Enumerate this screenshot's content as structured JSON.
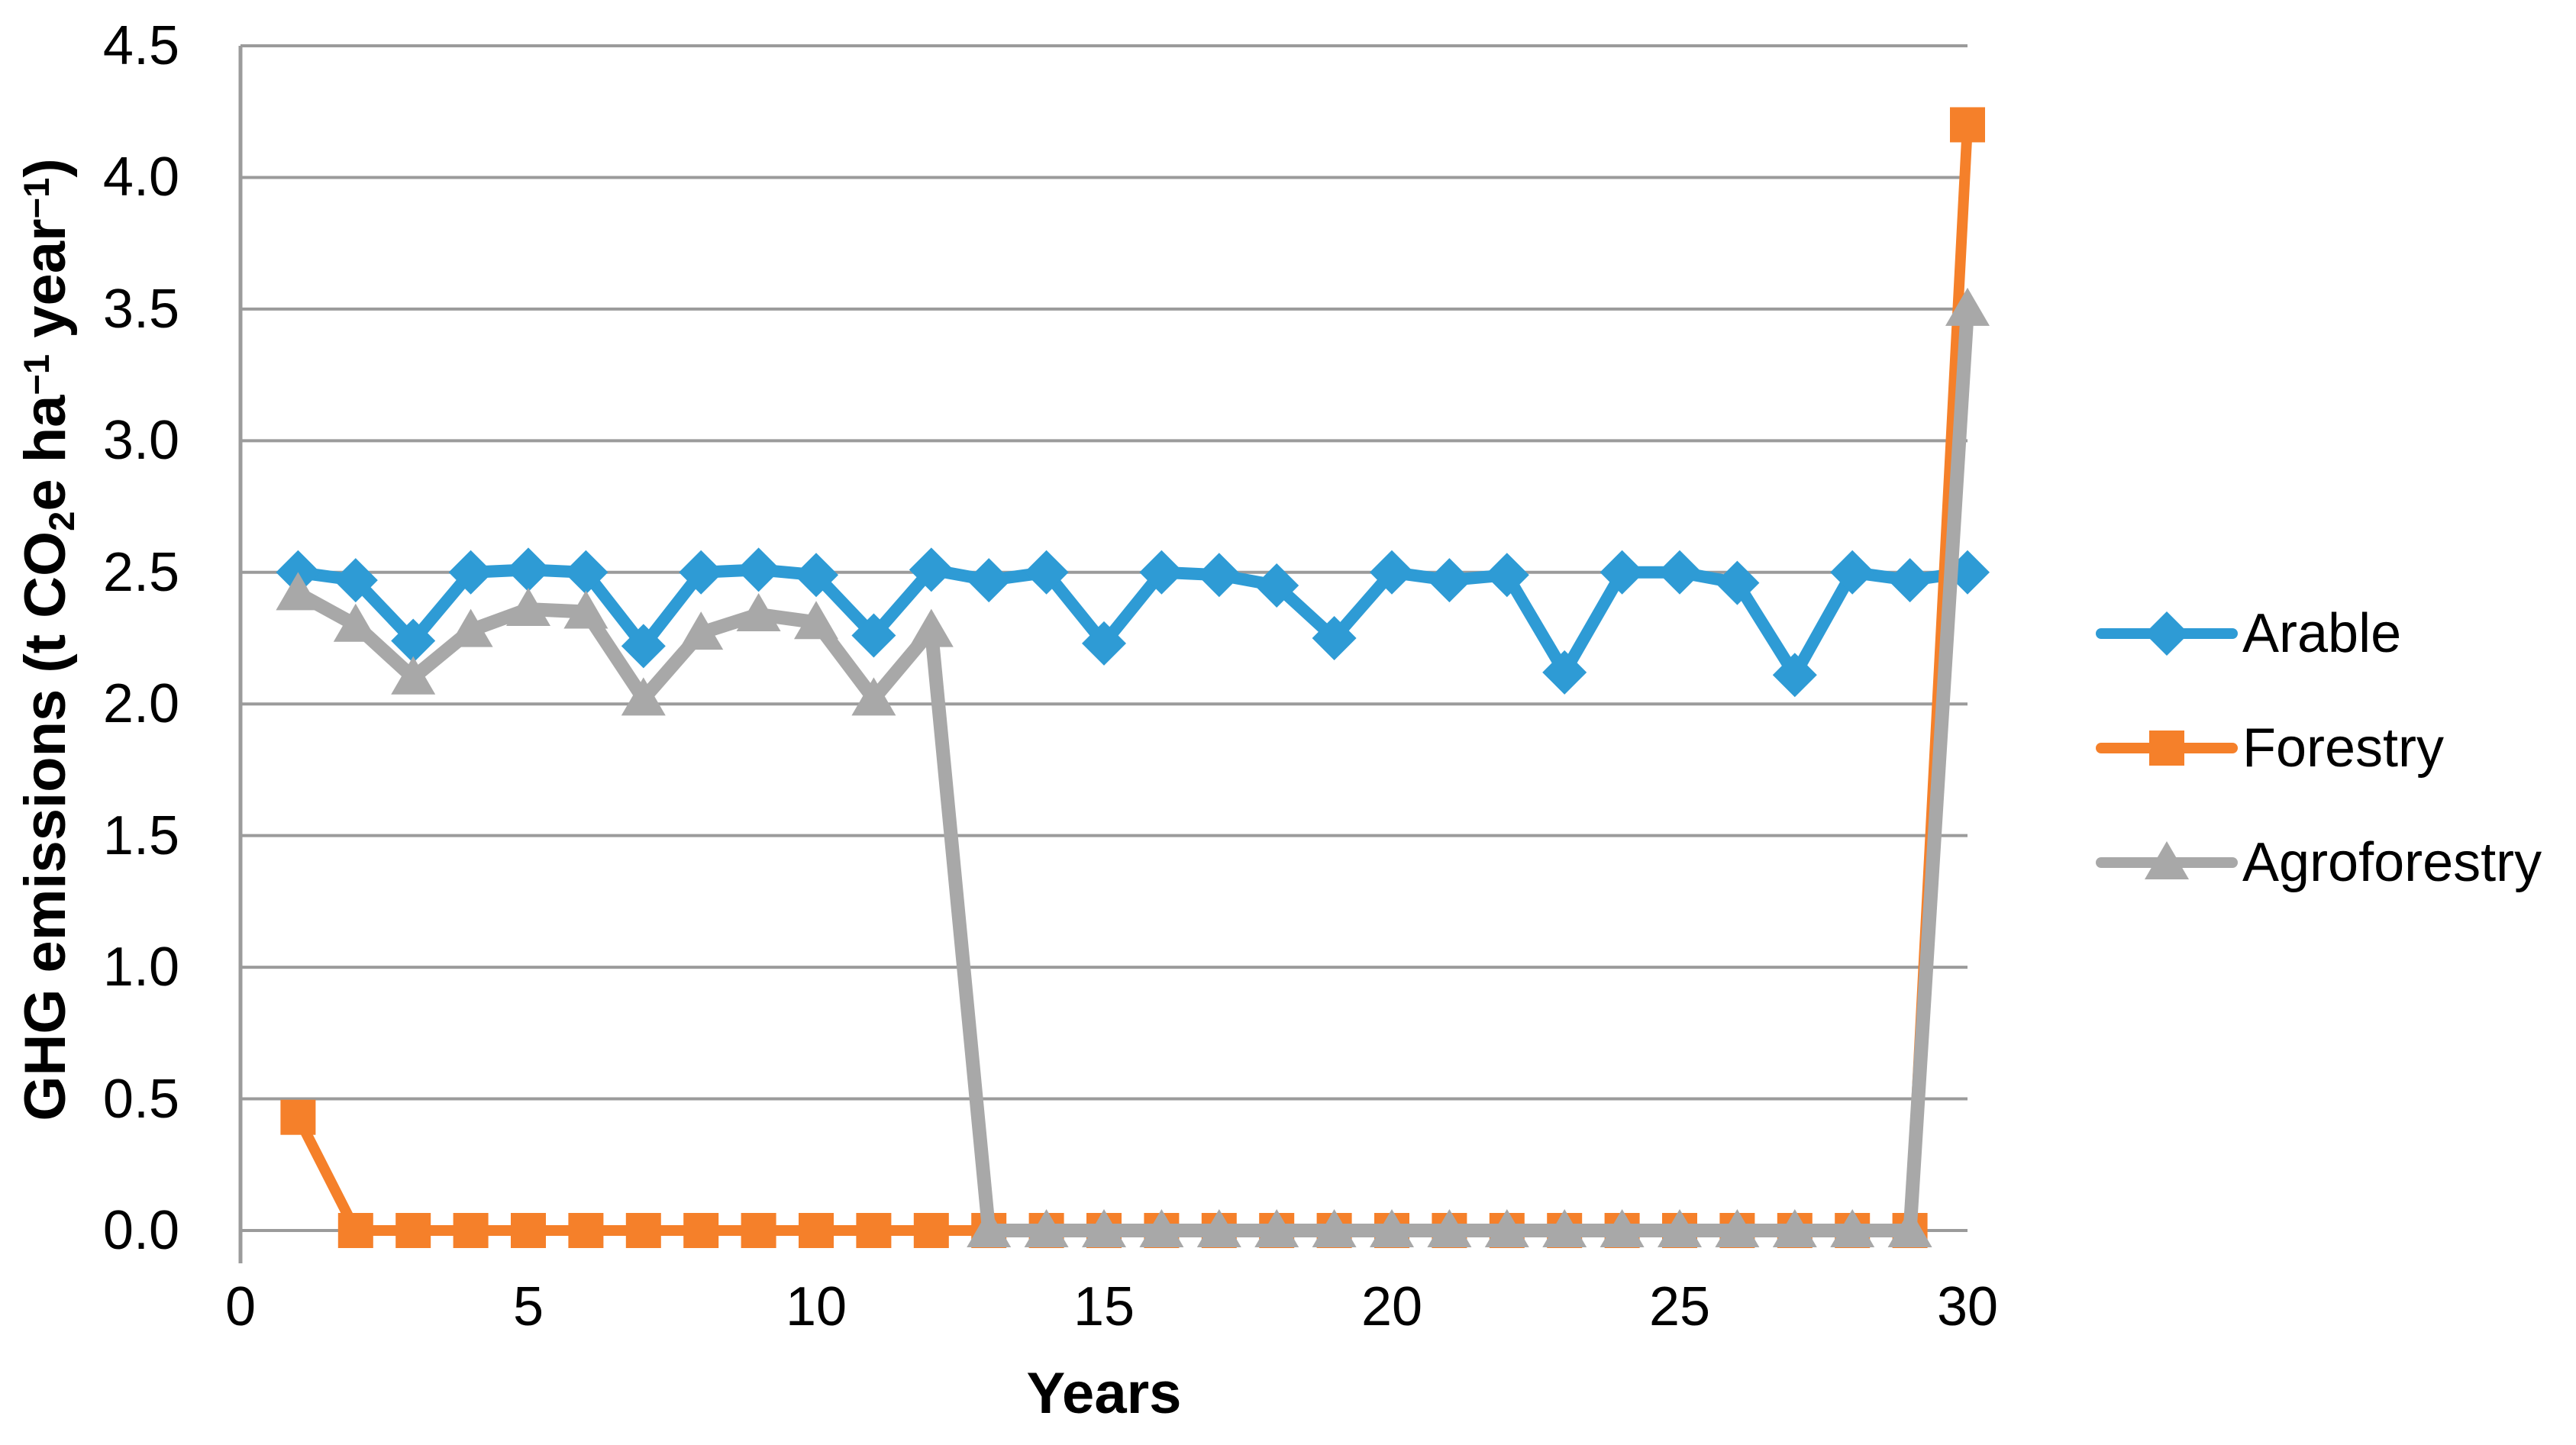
{
  "chart_data": {
    "type": "line",
    "title": "",
    "xlabel": "Years",
    "ylabel": "GHG emissions (t CO2e ha-1 year-1)",
    "ylabel_rich": [
      [
        "GHG emissions (t CO",
        ""
      ],
      [
        "2",
        "sub"
      ],
      [
        "e ha",
        ""
      ],
      [
        "−1",
        "sup"
      ],
      [
        " year",
        ""
      ],
      [
        "−1",
        "sup"
      ],
      [
        ")",
        ""
      ]
    ],
    "x": [
      1,
      2,
      3,
      4,
      5,
      6,
      7,
      8,
      9,
      10,
      11,
      12,
      13,
      14,
      15,
      16,
      17,
      18,
      19,
      20,
      21,
      22,
      23,
      24,
      25,
      26,
      27,
      28,
      29,
      30
    ],
    "series": [
      {
        "name": "Arable",
        "color": "#2E9BD5",
        "marker": "diamond",
        "values": [
          2.5,
          2.47,
          2.24,
          2.5,
          2.51,
          2.5,
          2.22,
          2.5,
          2.51,
          2.49,
          2.26,
          2.51,
          2.47,
          2.5,
          2.23,
          2.5,
          2.49,
          2.45,
          2.25,
          2.5,
          2.47,
          2.49,
          2.12,
          2.5,
          2.5,
          2.46,
          2.11,
          2.5,
          2.47,
          2.5
        ]
      },
      {
        "name": "Forestry",
        "color": "#F5802A",
        "marker": "square",
        "values": [
          0.43,
          0.0,
          0.0,
          0.0,
          0.0,
          0.0,
          0.0,
          0.0,
          0.0,
          0.0,
          0.0,
          0.0,
          0.0,
          0.0,
          0.0,
          0.0,
          0.0,
          0.0,
          0.0,
          0.0,
          0.0,
          0.0,
          0.0,
          0.0,
          0.0,
          0.0,
          0.0,
          0.0,
          0.0,
          4.2
        ]
      },
      {
        "name": "Agroforestry",
        "color": "#A8A8A8",
        "marker": "triangle",
        "values": [
          2.42,
          2.3,
          2.1,
          2.28,
          2.36,
          2.35,
          2.02,
          2.27,
          2.34,
          2.31,
          2.02,
          2.28,
          0.0,
          0.0,
          0.0,
          0.0,
          0.0,
          0.0,
          0.0,
          0.0,
          0.0,
          0.0,
          0.0,
          0.0,
          0.0,
          0.0,
          0.0,
          0.0,
          0.0,
          3.5
        ]
      }
    ],
    "ylim": [
      0,
      4.5
    ],
    "ytick_labels": [
      "0.0",
      "0.5",
      "1.0",
      "1.5",
      "2.0",
      "2.5",
      "3.0",
      "3.5",
      "4.0",
      "4.5"
    ],
    "xtick_labels": [
      "0",
      "5",
      "10",
      "15",
      "20",
      "25",
      "30"
    ],
    "grid": "horizontal",
    "gridline_color": "#9B9B9B",
    "legend_position": "right"
  }
}
